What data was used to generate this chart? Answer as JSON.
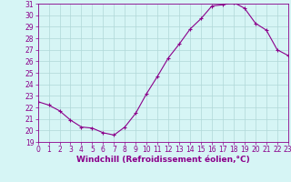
{
  "x": [
    0,
    1,
    2,
    3,
    4,
    5,
    6,
    7,
    8,
    9,
    10,
    11,
    12,
    13,
    14,
    15,
    16,
    17,
    18,
    19,
    20,
    21,
    22,
    23
  ],
  "y": [
    22.5,
    22.2,
    21.7,
    20.9,
    20.3,
    20.2,
    19.8,
    19.6,
    20.3,
    21.5,
    23.2,
    24.7,
    26.3,
    27.5,
    28.8,
    29.7,
    30.8,
    30.9,
    31.1,
    30.6,
    29.3,
    28.7,
    27.0,
    26.5
  ],
  "line_color": "#8b008b",
  "marker": "+",
  "marker_size": 3,
  "marker_linewidth": 0.8,
  "bg_color": "#d6f5f5",
  "grid_color": "#b0d8d8",
  "xlabel": "Windchill (Refroidissement éolien,°C)",
  "xlim": [
    0,
    23
  ],
  "ylim": [
    19,
    31
  ],
  "yticks": [
    19,
    20,
    21,
    22,
    23,
    24,
    25,
    26,
    27,
    28,
    29,
    30,
    31
  ],
  "xticks": [
    0,
    1,
    2,
    3,
    4,
    5,
    6,
    7,
    8,
    9,
    10,
    11,
    12,
    13,
    14,
    15,
    16,
    17,
    18,
    19,
    20,
    21,
    22,
    23
  ],
  "tick_fontsize": 5.5,
  "xlabel_fontsize": 6.5,
  "spine_color": "#8b008b",
  "line_width": 0.8
}
